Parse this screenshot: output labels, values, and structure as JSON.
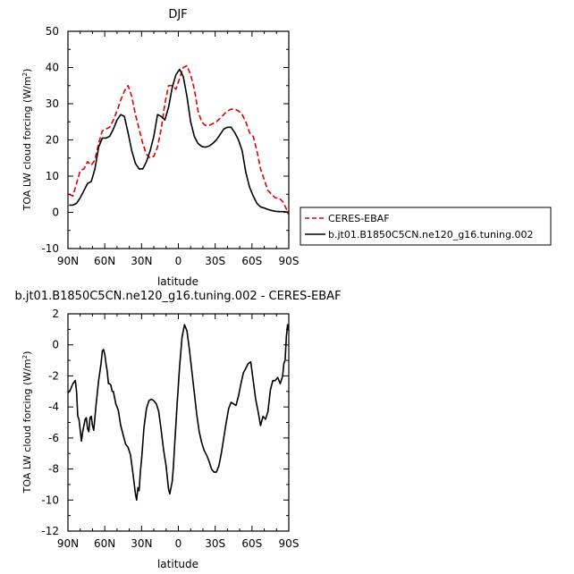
{
  "chart_data": [
    {
      "type": "line",
      "title": "DJF",
      "xlabel": "latitude",
      "ylabel": "TOA LW cloud forcing (W/m",
      "ylabel_sup": "2",
      "ylabel_end": ")",
      "xlim": [
        90,
        -90
      ],
      "ylim": [
        -10,
        50
      ],
      "yticks": [
        -10,
        0,
        10,
        20,
        30,
        40,
        50
      ],
      "xticks": [
        90,
        60,
        30,
        0,
        -30,
        -60,
        -90
      ],
      "xtick_labels": [
        "90N",
        "60N",
        "30N",
        "0",
        "30S",
        "60S",
        "90S"
      ],
      "grid": false,
      "legend_placement": "right-outside",
      "series": [
        {
          "name": "CERES-EBAF",
          "color": "#e00000",
          "dash": "dashed",
          "x": [
            89,
            86,
            83,
            80,
            77,
            74,
            71,
            68,
            65,
            62,
            59,
            56,
            53,
            50,
            47,
            44,
            41,
            38,
            35,
            32,
            29,
            26,
            23,
            20,
            17,
            14,
            11,
            8,
            5,
            2,
            -1,
            -4,
            -7,
            -10,
            -13,
            -16,
            -19,
            -22,
            -25,
            -28,
            -31,
            -34,
            -37,
            -40,
            -43,
            -46,
            -49,
            -52,
            -55,
            -58,
            -61,
            -64,
            -67,
            -70,
            -73,
            -76,
            -79,
            -82,
            -85,
            -88,
            -89.5
          ],
          "y": [
            5,
            4.5,
            8,
            11.5,
            12,
            14,
            13,
            14.5,
            19,
            22.5,
            23,
            23.5,
            25.5,
            28,
            31,
            33.5,
            35,
            32,
            27,
            23,
            19,
            16,
            15,
            15.5,
            18,
            23,
            30,
            35,
            35,
            34,
            37,
            40,
            40.5,
            38,
            34,
            28,
            25,
            24,
            24,
            24.5,
            25,
            26,
            27,
            28,
            28.5,
            28.5,
            28,
            27,
            25,
            22,
            21,
            17,
            12,
            9,
            6,
            5,
            4,
            4,
            3,
            1,
            -0.5
          ]
        },
        {
          "name": "b.jt01.B1850C5CN.ne120_g16.tuning.002",
          "color": "#000000",
          "dash": "solid",
          "x": [
            89,
            86,
            83,
            80,
            77,
            74,
            71,
            68,
            65,
            62,
            59,
            56,
            53,
            50,
            47,
            44,
            41,
            38,
            35,
            32,
            29,
            26,
            23,
            20,
            17,
            14,
            11,
            8,
            5,
            2,
            -1,
            -4,
            -7,
            -10,
            -13,
            -16,
            -19,
            -22,
            -25,
            -28,
            -31,
            -34,
            -37,
            -40,
            -43,
            -46,
            -49,
            -52,
            -55,
            -58,
            -61,
            -64,
            -67,
            -70,
            -73,
            -76,
            -79,
            -82,
            -85,
            -88,
            -89.5
          ],
          "y": [
            2,
            2,
            2.5,
            4,
            6,
            8,
            8.5,
            12,
            18,
            20.5,
            20.5,
            21,
            23,
            25.5,
            27,
            26.5,
            22,
            17,
            13.5,
            12,
            12,
            14,
            17,
            21,
            27,
            26.5,
            25.5,
            29,
            34.5,
            38,
            39.5,
            37.5,
            32,
            25,
            21,
            19,
            18.2,
            18,
            18.3,
            19,
            20,
            21.5,
            23,
            23.5,
            23.5,
            22,
            20,
            17,
            11,
            7,
            4.5,
            2.5,
            1.5,
            1.2,
            0.8,
            0.5,
            0.3,
            0.2,
            0.2,
            0.1,
            0.1
          ]
        }
      ]
    },
    {
      "type": "line",
      "title": "b.jt01.B1850C5CN.ne120_g16.tuning.002 - CERES-EBAF",
      "xlabel": "latitude",
      "ylabel": "TOA LW cloud forcing (W/m",
      "ylabel_sup": "2",
      "ylabel_end": ")",
      "xlim": [
        90,
        -90
      ],
      "ylim": [
        -12,
        2
      ],
      "yticks": [
        -12,
        -10,
        -8,
        -6,
        -4,
        -2,
        0,
        2
      ],
      "xticks": [
        90,
        60,
        30,
        0,
        -30,
        -60,
        -90
      ],
      "xtick_labels": [
        "90N",
        "60N",
        "30N",
        "0",
        "30S",
        "60S",
        "90S"
      ],
      "grid": false,
      "series": [
        {
          "color": "#000000",
          "dash": "solid",
          "x": [
            90,
            88,
            86,
            84,
            83,
            82,
            81,
            80,
            79,
            78,
            77,
            76,
            75,
            74,
            73,
            72,
            71,
            70,
            69,
            67,
            65,
            63,
            62,
            61,
            60,
            59,
            58,
            57,
            56,
            55,
            54,
            53,
            51,
            49,
            47,
            45,
            43,
            41,
            39,
            37,
            35,
            34,
            33,
            32,
            31,
            30,
            28,
            26,
            24,
            22,
            20,
            18,
            16,
            14,
            12,
            10,
            8,
            7,
            6,
            5,
            4,
            3,
            1,
            -1,
            -3,
            -5,
            -7,
            -9,
            -11,
            -13,
            -15,
            -17,
            -19,
            -21,
            -23,
            -25,
            -27,
            -29,
            -31,
            -33,
            -35,
            -37,
            -39,
            -41,
            -43,
            -45,
            -47,
            -49,
            -51,
            -53,
            -55,
            -57,
            -59,
            -61,
            -63,
            -65,
            -67,
            -69,
            -71,
            -73,
            -75,
            -77,
            -79,
            -81,
            -83,
            -85,
            -86,
            -87,
            -88,
            -89,
            -90
          ],
          "y": [
            -3.1,
            -2.9,
            -2.5,
            -2.3,
            -3,
            -4.6,
            -4.8,
            -5.5,
            -6.2,
            -5.6,
            -5.2,
            -4.8,
            -4.7,
            -5.4,
            -5.6,
            -4.7,
            -4.6,
            -5.2,
            -5.5,
            -3.8,
            -2.3,
            -1.2,
            -0.4,
            -0.3,
            -0.6,
            -1.2,
            -1.7,
            -2.5,
            -2.5,
            -2.6,
            -3,
            -3,
            -3.8,
            -4.2,
            -5.2,
            -5.8,
            -6.4,
            -6.6,
            -7.1,
            -8.3,
            -9.6,
            -10,
            -9.2,
            -9.4,
            -8.2,
            -7.4,
            -5.3,
            -4.1,
            -3.6,
            -3.5,
            -3.6,
            -3.8,
            -4.3,
            -5.5,
            -6.8,
            -7.8,
            -9.3,
            -9.6,
            -9.2,
            -8.8,
            -7.8,
            -6.4,
            -3.8,
            -1.4,
            0.5,
            1.3,
            0.9,
            -0.3,
            -1.7,
            -3.1,
            -4.5,
            -5.6,
            -6.3,
            -6.8,
            -7.1,
            -7.5,
            -8,
            -8.2,
            -8.2,
            -7.8,
            -7,
            -6,
            -5,
            -4.1,
            -3.7,
            -3.8,
            -3.9,
            -3.3,
            -2.5,
            -1.8,
            -1.5,
            -1.2,
            -1.1,
            -2.3,
            -3.5,
            -4.3,
            -5.2,
            -4.6,
            -4.8,
            -4.3,
            -2.9,
            -2.3,
            -2.3,
            -2.1,
            -2.5,
            -2,
            -1.2,
            -1,
            0.5,
            1.3,
            0.9
          ]
        }
      ]
    }
  ]
}
